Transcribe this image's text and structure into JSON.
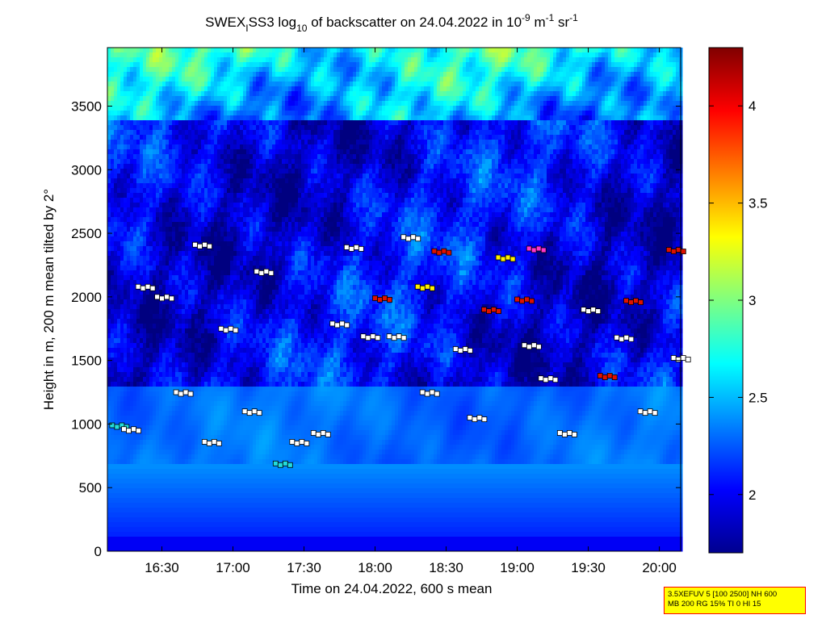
{
  "chart_data": {
    "type": "heatmap",
    "title": {
      "prefix": "SWEX",
      "prefix_sub": "I",
      "middle": "SS3 log",
      "middle_sub": "10",
      "suffix": " of backscatter on 24.04.2022 in 10",
      "sup1": "-9",
      "unit_m": " m",
      "sup2": "-1",
      "unit_sr": " sr",
      "sup3": "-1"
    },
    "xlabel": "Time on 24.04.2022, 600 s mean",
    "ylabel": "Height in m, 200 m mean tilted by 2°",
    "x_range": [
      "16:07",
      "20:09"
    ],
    "x_ticks": [
      "16:30",
      "17:00",
      "17:30",
      "18:00",
      "18:30",
      "19:00",
      "19:30",
      "20:00"
    ],
    "y_range": [
      0,
      3960
    ],
    "y_ticks": [
      0,
      500,
      1000,
      1500,
      2000,
      2500,
      3000,
      3500
    ],
    "colorbar": {
      "colormap": "jet",
      "range": [
        1.7,
        4.3
      ],
      "ticks": [
        "2",
        "2.5",
        "3",
        "3.5",
        "4"
      ]
    },
    "layers": [
      {
        "time": "16:09",
        "height": 990,
        "color": "cyan"
      },
      {
        "time": "16:14",
        "height": 960,
        "color": "white"
      },
      {
        "time": "16:20",
        "height": 2080,
        "color": "white"
      },
      {
        "time": "16:28",
        "height": 2000,
        "color": "white"
      },
      {
        "time": "16:36",
        "height": 1250,
        "color": "white"
      },
      {
        "time": "16:44",
        "height": 2410,
        "color": "white"
      },
      {
        "time": "16:48",
        "height": 860,
        "color": "white"
      },
      {
        "time": "16:55",
        "height": 1750,
        "color": "white"
      },
      {
        "time": "17:05",
        "height": 1100,
        "color": "white"
      },
      {
        "time": "17:10",
        "height": 2200,
        "color": "white"
      },
      {
        "time": "17:18",
        "height": 690,
        "color": "cyan"
      },
      {
        "time": "17:25",
        "height": 860,
        "color": "white"
      },
      {
        "time": "17:34",
        "height": 930,
        "color": "white"
      },
      {
        "time": "17:42",
        "height": 1790,
        "color": "white"
      },
      {
        "time": "17:48",
        "height": 2390,
        "color": "white"
      },
      {
        "time": "17:55",
        "height": 1690,
        "color": "white"
      },
      {
        "time": "18:00",
        "height": 1990,
        "color": "red"
      },
      {
        "time": "18:06",
        "height": 1690,
        "color": "white"
      },
      {
        "time": "18:12",
        "height": 2470,
        "color": "white"
      },
      {
        "time": "18:18",
        "height": 2080,
        "color": "yellow"
      },
      {
        "time": "18:20",
        "height": 1250,
        "color": "white"
      },
      {
        "time": "18:25",
        "height": 2360,
        "color": "red"
      },
      {
        "time": "18:34",
        "height": 1590,
        "color": "white"
      },
      {
        "time": "18:40",
        "height": 1050,
        "color": "white"
      },
      {
        "time": "18:46",
        "height": 1900,
        "color": "red"
      },
      {
        "time": "18:52",
        "height": 2310,
        "color": "yellow"
      },
      {
        "time": "19:00",
        "height": 1980,
        "color": "red"
      },
      {
        "time": "19:03",
        "height": 1620,
        "color": "white"
      },
      {
        "time": "19:05",
        "height": 2380,
        "color": "magenta"
      },
      {
        "time": "19:10",
        "height": 1360,
        "color": "white"
      },
      {
        "time": "19:18",
        "height": 930,
        "color": "white"
      },
      {
        "time": "19:28",
        "height": 1900,
        "color": "white"
      },
      {
        "time": "19:35",
        "height": 1380,
        "color": "red"
      },
      {
        "time": "19:42",
        "height": 1680,
        "color": "white"
      },
      {
        "time": "19:46",
        "height": 1970,
        "color": "red"
      },
      {
        "time": "19:52",
        "height": 1100,
        "color": "white"
      },
      {
        "time": "20:04",
        "height": 2370,
        "color": "red"
      },
      {
        "time": "20:06",
        "height": 1520,
        "color": "white"
      }
    ],
    "grid": false,
    "legend": "none"
  },
  "info_box": {
    "line1": "3.5XEFUV 5 [100 2500] NH 600",
    "line2": "MB 200 RG 15% TI 0 HI 15"
  }
}
